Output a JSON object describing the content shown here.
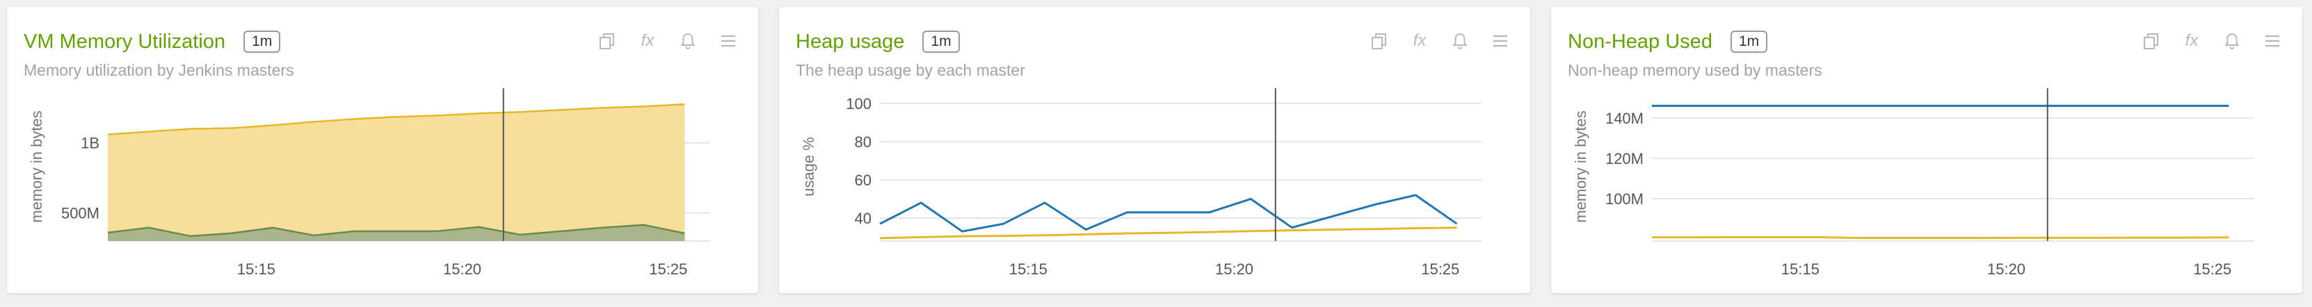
{
  "colors": {
    "title": "#61a300",
    "jenkins_total": "#e5b82a",
    "jenkins_fill": "#f5df9a",
    "used_line": "#6b8a4d",
    "used_fill": "#a9b58a",
    "heap_line": "#1f77b4",
    "gold_line": "#e5b82a",
    "grid": "#e6e6e6",
    "crosshair": "#555555"
  },
  "icons": [
    "copy-icon",
    "fx-icon",
    "bell-icon",
    "menu-icon"
  ],
  "panels": [
    {
      "title": "VM Memory Utilization",
      "interval": "1m",
      "subtitle": "Memory utilization by Jenkins masters",
      "fx": "fx",
      "chart_data": {
        "type": "area",
        "ylabel": "memory in bytes",
        "ylim": [
          300000000,
          1350000000
        ],
        "yticks": [
          {
            "value": 500000000,
            "label": "500M"
          },
          {
            "value": 1000000000,
            "label": "1B"
          }
        ],
        "xlim": [
          0,
          14.6
        ],
        "xticks": [
          {
            "value": 3.6,
            "label": "15:15"
          },
          {
            "value": 8.6,
            "label": "15:20"
          },
          {
            "value": 13.6,
            "label": "15:25"
          }
        ],
        "crosshair_x": 9.6,
        "x": [
          0,
          1,
          2,
          3,
          4,
          5,
          6,
          7,
          8,
          9,
          10,
          11,
          12,
          13,
          14
        ],
        "series": [
          {
            "values": [
              1060000000,
              1080000000,
              1100000000,
              1105000000,
              1125000000,
              1150000000,
              1170000000,
              1185000000,
              1195000000,
              1210000000,
              1220000000,
              1235000000,
              1250000000,
              1260000000,
              1275000000
            ],
            "style": "total"
          },
          {
            "values": [
              360000000,
              395000000,
              335000000,
              355000000,
              395000000,
              340000000,
              370000000,
              370000000,
              370000000,
              400000000,
              345000000,
              370000000,
              395000000,
              415000000,
              355000000
            ],
            "style": "used"
          }
        ]
      }
    },
    {
      "title": "Heap usage",
      "interval": "1m",
      "subtitle": "The heap usage by each master",
      "fx": "fx",
      "chart_data": {
        "type": "line",
        "ylabel": "usage %",
        "ylim": [
          28,
          105
        ],
        "yticks": [
          {
            "value": 40,
            "label": "40"
          },
          {
            "value": 60,
            "label": "60"
          },
          {
            "value": 80,
            "label": "80"
          },
          {
            "value": 100,
            "label": "100"
          }
        ],
        "xlim": [
          0,
          14.6
        ],
        "xticks": [
          {
            "value": 3.6,
            "label": "15:15"
          },
          {
            "value": 8.6,
            "label": "15:20"
          },
          {
            "value": 13.6,
            "label": "15:25"
          }
        ],
        "crosshair_x": 9.6,
        "x": [
          0,
          1,
          2,
          3,
          4,
          5,
          6,
          7,
          8,
          9,
          10,
          11,
          12,
          13,
          14
        ],
        "series": [
          {
            "values": [
              37,
              48,
              33,
              37,
              48,
              34,
              43,
              43,
              43,
              50,
              35,
              41,
              47,
              52,
              37
            ],
            "style": "blue"
          },
          {
            "values": [
              29.5,
              30,
              30.5,
              30.7,
              31,
              31.5,
              32,
              32.3,
              32.7,
              33.2,
              33.6,
              34,
              34.3,
              34.7,
              35
            ],
            "style": "gold"
          }
        ]
      }
    },
    {
      "title": "Non-Heap Used",
      "interval": "1m",
      "subtitle": "Non-heap memory used by masters",
      "fx": "fx",
      "chart_data": {
        "type": "line",
        "ylabel": "memory in bytes",
        "ylim": [
          79000000,
          152000000
        ],
        "yticks": [
          {
            "value": 100000000,
            "label": "100M"
          },
          {
            "value": 120000000,
            "label": "120M"
          },
          {
            "value": 140000000,
            "label": "140M"
          }
        ],
        "xlim": [
          0,
          14.6
        ],
        "xticks": [
          {
            "value": 3.6,
            "label": "15:15"
          },
          {
            "value": 8.6,
            "label": "15:20"
          },
          {
            "value": 13.6,
            "label": "15:25"
          }
        ],
        "crosshair_x": 9.6,
        "x": [
          0,
          1,
          2,
          3,
          4,
          5,
          6,
          7,
          8,
          9,
          10,
          11,
          12,
          13,
          14
        ],
        "series": [
          {
            "values": [
              146000000,
              146000000,
              146000000,
              146000000,
              146000000,
              146000000,
              146000000,
              146000000,
              146000000,
              146000000,
              146000000,
              146000000,
              146000000,
              146000000,
              146000000
            ],
            "style": "blue"
          },
          {
            "values": [
              80800000,
              80800000,
              80900000,
              80900000,
              80900000,
              80500000,
              80500000,
              80500000,
              80500000,
              80600000,
              80600000,
              80600000,
              80700000,
              80700000,
              80800000
            ],
            "style": "gold"
          }
        ]
      }
    }
  ]
}
